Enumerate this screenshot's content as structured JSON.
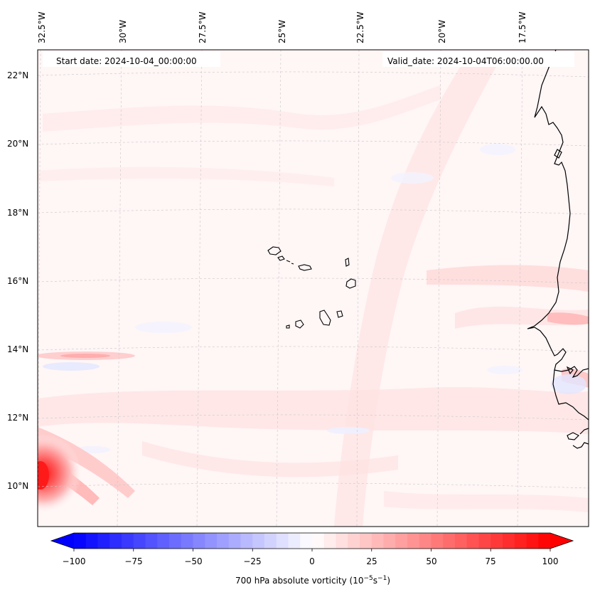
{
  "map": {
    "start_date": "Start date: 2024-10-04_00:00:00",
    "valid_date": "Valid_date: 2024-10-04T06:00:00.00",
    "lon_ticks": [
      "32.5°W",
      "30°W",
      "27.5°W",
      "25°W",
      "22.5°W",
      "20°W",
      "17.5°W"
    ],
    "lat_ticks": [
      "22°N",
      "20°N",
      "18°N",
      "16°N",
      "14°N",
      "12°N",
      "10°N"
    ],
    "features": [
      "Cabo Verde islands",
      "West African coastline"
    ],
    "grid": "dashed gray graticule"
  },
  "colorbar": {
    "label_main": "700 hPa absolute vorticity (10",
    "label_exp1": "−5",
    "label_mid": "s",
    "label_exp2": "−1",
    "label_end": ")",
    "ticks": [
      "−100",
      "−75",
      "−50",
      "−25",
      "0",
      "25",
      "50",
      "75",
      "100"
    ],
    "colors": {
      "min": "#0000ff",
      "mid": "#ffffff",
      "max": "#ff0000"
    },
    "extend": "both"
  }
}
